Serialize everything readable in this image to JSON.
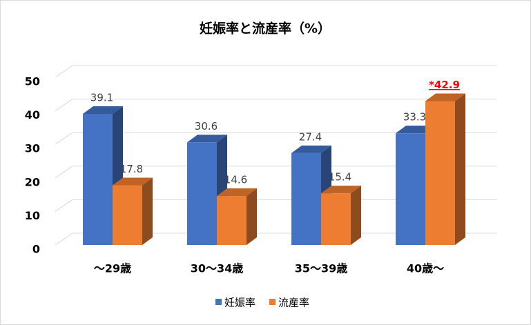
{
  "chart_data": {
    "type": "bar3d",
    "title": "妊娠率と流産率（%）",
    "categories": [
      "～29歳",
      "30～34歳",
      "35～39歳",
      "40歳～"
    ],
    "series": [
      {
        "name": "妊娠率",
        "color": "#4472c4",
        "values": [
          39.1,
          30.6,
          27.4,
          33.3
        ]
      },
      {
        "name": "流産率",
        "color": "#ed7d31",
        "values": [
          17.8,
          14.6,
          15.4,
          42.9
        ],
        "value_labels": [
          "17.8",
          "14.6",
          "15.4",
          "*42.9"
        ],
        "value_label_colors": [
          "#404040",
          "#404040",
          "#404040",
          "#ff0000"
        ]
      }
    ],
    "ylim": [
      0,
      50
    ],
    "yticks": [
      0,
      10,
      20,
      30,
      40,
      50
    ],
    "grid": true,
    "legend": "bottom"
  }
}
